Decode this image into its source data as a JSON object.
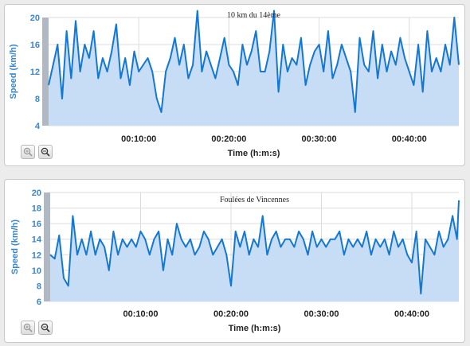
{
  "charts": [
    {
      "title": "10 km du 14ème",
      "ylabel": "Speed (km/h)",
      "xlabel": "Time (h:m:s)",
      "ylim": [
        4,
        20
      ],
      "yticks": [
        4,
        8,
        12,
        16,
        20
      ],
      "xticks": [
        "00:10:00",
        "00:20:00",
        "00:30:00",
        "00:40:00"
      ],
      "zoom_in_icon": "zoom-in-icon",
      "zoom_out_icon": "zoom-out-icon"
    },
    {
      "title": "Foulées de Vincennes",
      "ylabel": "Speed (km/h)",
      "xlabel": "Time (h:m:s)",
      "ylim": [
        6,
        20
      ],
      "yticks": [
        6,
        8,
        10,
        12,
        14,
        16,
        18,
        20
      ],
      "xticks": [
        "00:10:00",
        "00:20:00",
        "00:30:00",
        "00:40:00"
      ],
      "zoom_in_icon": "zoom-in-icon",
      "zoom_out_icon": "zoom-out-icon"
    }
  ],
  "colors": {
    "line": "#1478d2",
    "fill": "#c6ddf5",
    "grid": "#dcdcdc",
    "axis_text": "#3a86c8",
    "handle": "#b0b8c4"
  },
  "chart_data": [
    {
      "type": "area",
      "title": "10 km du 14ème",
      "xlabel": "Time (h:m:s)",
      "ylabel": "Speed (km/h)",
      "x_unit": "minutes",
      "xlim": [
        0,
        45.5
      ],
      "ylim": [
        4,
        20
      ],
      "grid": true,
      "x": [
        0,
        0.5,
        1,
        1.5,
        2,
        2.5,
        3,
        3.5,
        4,
        4.5,
        5,
        5.5,
        6,
        6.5,
        7,
        7.5,
        8,
        8.5,
        9,
        9.5,
        10,
        10.5,
        11,
        11.5,
        12,
        12.5,
        13,
        13.5,
        14,
        14.5,
        15,
        15.5,
        16,
        16.5,
        17,
        17.5,
        18,
        18.5,
        19,
        19.5,
        20,
        20.5,
        21,
        21.5,
        22,
        22.5,
        23,
        23.5,
        24,
        24.5,
        25,
        25.5,
        26,
        26.5,
        27,
        27.5,
        28,
        28.5,
        29,
        29.5,
        30,
        30.5,
        31,
        31.5,
        32,
        32.5,
        33,
        33.5,
        34,
        34.5,
        35,
        35.5,
        36,
        36.5,
        37,
        37.5,
        38,
        38.5,
        39,
        39.5,
        40,
        40.5,
        41,
        41.5,
        42,
        42.5,
        43,
        43.5,
        44,
        44.5,
        45,
        45.5
      ],
      "series": [
        {
          "values": [
            10,
            13,
            16,
            8,
            18,
            11,
            19.5,
            12,
            16,
            14,
            18,
            11,
            14,
            12,
            15,
            19,
            11,
            14,
            10,
            15,
            12,
            13,
            14,
            12,
            8,
            6,
            12,
            14,
            17,
            13,
            16,
            11,
            13,
            21,
            12,
            15,
            13,
            11,
            14,
            17,
            13,
            12,
            10,
            16,
            13,
            15,
            18,
            12,
            12,
            15,
            21,
            9,
            16,
            12,
            14,
            13,
            17,
            10,
            13,
            15,
            16,
            12,
            18,
            11,
            13,
            16,
            14,
            12,
            6,
            17,
            13,
            12,
            18,
            11,
            16,
            12,
            15,
            13,
            17,
            14,
            12,
            10,
            16,
            9,
            18,
            12,
            14,
            12,
            16,
            13,
            20,
            13
          ]
        }
      ]
    },
    {
      "type": "area",
      "title": "Foulées de Vincennes",
      "xlabel": "Time (h:m:s)",
      "ylabel": "Speed (km/h)",
      "x_unit": "minutes",
      "xlim": [
        0,
        45.2
      ],
      "ylim": [
        6,
        20
      ],
      "grid": true,
      "x": [
        0,
        0.5,
        1,
        1.5,
        2,
        2.5,
        3,
        3.5,
        4,
        4.5,
        5,
        5.5,
        6,
        6.5,
        7,
        7.5,
        8,
        8.5,
        9,
        9.5,
        10,
        10.5,
        11,
        11.5,
        12,
        12.5,
        13,
        13.5,
        14,
        14.5,
        15,
        15.5,
        16,
        16.5,
        17,
        17.5,
        18,
        18.5,
        19,
        19.5,
        20,
        20.5,
        21,
        21.5,
        22,
        22.5,
        23,
        23.5,
        24,
        24.5,
        25,
        25.5,
        26,
        26.5,
        27,
        27.5,
        28,
        28.5,
        29,
        29.5,
        30,
        30.5,
        31,
        31.5,
        32,
        32.5,
        33,
        33.5,
        34,
        34.5,
        35,
        35.5,
        36,
        36.5,
        37,
        37.5,
        38,
        38.5,
        39,
        39.5,
        40,
        40.5,
        41,
        41.5,
        42,
        42.5,
        43,
        43.5,
        44,
        44.5,
        45,
        45.2
      ],
      "series": [
        {
          "values": [
            12,
            11.5,
            14.5,
            9,
            8,
            17,
            12,
            14,
            12,
            15,
            12,
            14,
            13,
            10,
            15,
            12,
            14,
            13,
            14,
            13,
            15,
            14,
            12,
            14,
            15,
            10,
            14,
            12,
            16,
            14,
            13,
            14,
            12,
            13,
            15,
            14,
            12,
            13,
            14,
            12,
            8,
            15,
            13,
            15,
            12,
            14,
            13,
            17,
            12,
            14,
            15,
            13,
            14,
            14,
            13,
            15,
            14,
            12,
            15,
            13,
            14,
            13,
            14,
            14,
            15,
            12,
            14,
            13,
            14,
            13,
            15,
            12,
            14,
            13,
            14,
            12,
            15,
            13,
            14,
            12,
            11,
            15,
            7,
            14,
            13,
            12,
            15,
            13,
            14,
            17,
            14,
            19
          ]
        }
      ]
    }
  ]
}
